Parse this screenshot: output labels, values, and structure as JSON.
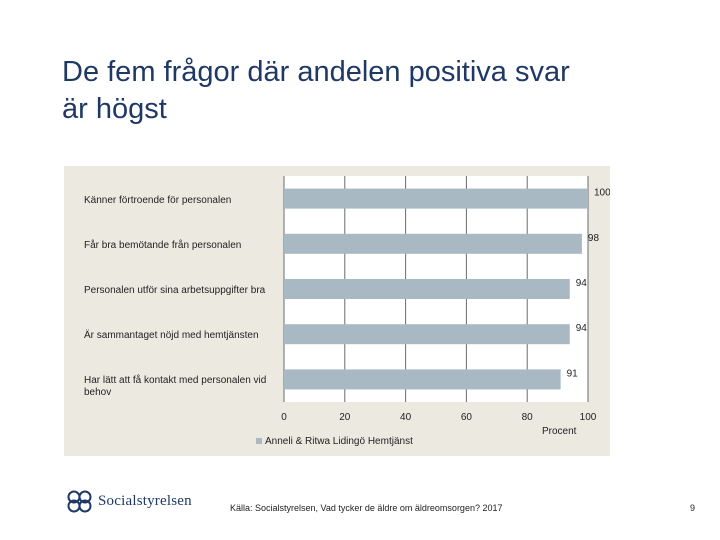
{
  "slide": {
    "title": "De fem frågor där andelen positiva svar\när högst",
    "source": "Källa: Socialstyrelsen, Vad tycker de äldre om äldreomsorgen? 2017",
    "page_number": "9",
    "logo_text": "Socialstyrelsen"
  },
  "colors": {
    "bar": "#a9b9c4",
    "panel": "#ece9e0",
    "title": "#1f3864",
    "grid": "#6b6b6b"
  },
  "chart_data": {
    "type": "bar",
    "orientation": "horizontal",
    "categories": [
      "Känner förtroende för personalen",
      "Får bra bemötande från personalen",
      "Personalen utför sina arbetsuppgifter bra",
      "Är sammantaget nöjd med hemtjänsten",
      "Har lätt att få kontakt med personalen vid behov"
    ],
    "series": [
      {
        "name": "Anneli & Ritwa Lidingö Hemtjänst",
        "values": [
          100,
          98,
          94,
          94,
          91
        ]
      }
    ],
    "xlim": [
      0,
      100
    ],
    "xticks": [
      0,
      20,
      40,
      60,
      80,
      100
    ],
    "xlabel": "Procent",
    "grid": true,
    "legend": "bottom"
  }
}
